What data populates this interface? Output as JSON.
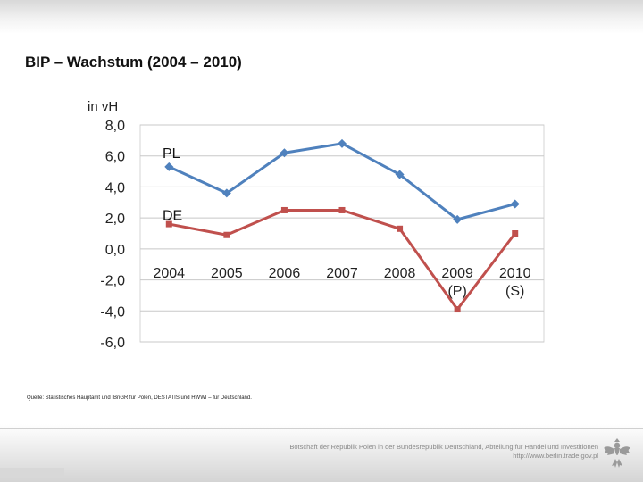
{
  "slide": {
    "title": "BIP – Wachstum (2004 – 2010)",
    "source": "Quelle: Statistisches Hauptamt und IBnGR für Polen, DESTATIS und HWWI – für Deutschland.",
    "footer_line1": "Botschaft der Republik Polen in der Bundesrepublik Deutschland, Abteilung für Handel und Investitionen",
    "footer_line2": "http://www.berlin.trade.gov.pl"
  },
  "chart_data": {
    "type": "line",
    "title": "",
    "ylabel": "in vH",
    "xlabel": "",
    "ylim": [
      -6.0,
      8.0
    ],
    "yticks": [
      8.0,
      6.0,
      4.0,
      2.0,
      0.0,
      -2.0,
      -4.0,
      -6.0
    ],
    "ytick_labels": [
      "8,0",
      "6,0",
      "4,0",
      "2,0",
      "0,0",
      "-2,0",
      "-4,0",
      "-6,0"
    ],
    "categories": [
      "2004",
      "2005",
      "2006",
      "2007",
      "2008",
      "2009",
      "2010"
    ],
    "category_sublabels": [
      "",
      "",
      "",
      "",
      "",
      "(P)",
      "(S)"
    ],
    "grid": true,
    "series": [
      {
        "name": "PL",
        "color": "#4f81bd",
        "marker": "diamond",
        "values": [
          5.3,
          3.6,
          6.2,
          6.8,
          4.8,
          1.9,
          2.9
        ]
      },
      {
        "name": "DE",
        "color": "#c0504d",
        "marker": "square",
        "values": [
          1.6,
          0.9,
          2.5,
          2.5,
          1.3,
          -3.9,
          1.0
        ]
      }
    ]
  },
  "colors": {
    "grid": "#c8c8c8",
    "axis_text": "#222222"
  }
}
